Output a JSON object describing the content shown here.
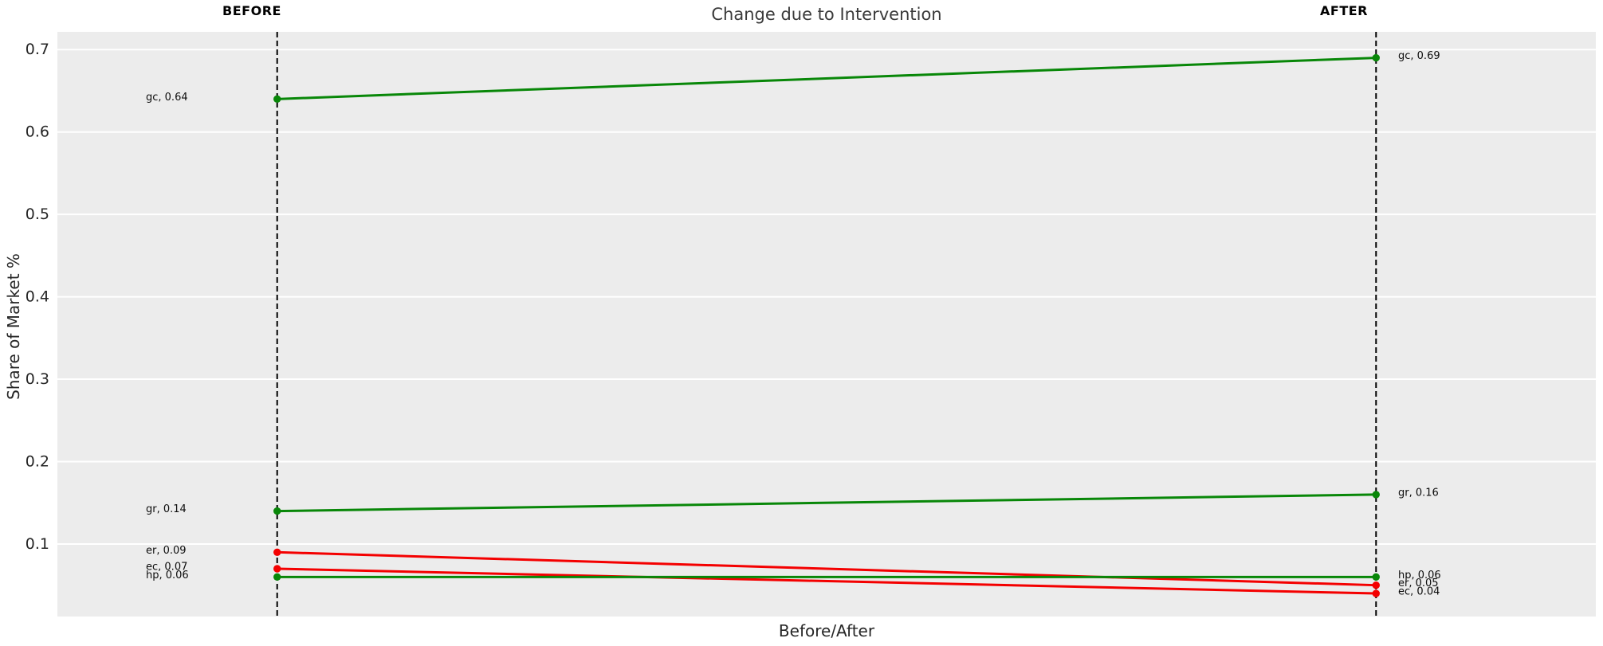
{
  "title": "Change due to Intervention",
  "axes": {
    "ylabel": "Share of Market %",
    "xlabel": "Before/After"
  },
  "columns": {
    "before": "BEFORE",
    "after": "AFTER"
  },
  "chart_data": {
    "type": "line",
    "subtype": "slopegraph",
    "title": "Change due to Intervention",
    "xlabel": "Before/After",
    "ylabel": "Share of Market %",
    "categories": [
      "BEFORE",
      "AFTER"
    ],
    "x": [
      1,
      2
    ],
    "xlim": [
      0.8,
      2.2
    ],
    "ylim": [
      0.012,
      0.7215
    ],
    "yticks": [
      0.1,
      0.2,
      0.3,
      0.4,
      0.5,
      0.6,
      0.7
    ],
    "grid": true,
    "legend": "none",
    "plot_bg_color": "#ececec",
    "grid_color": "#ffffff",
    "column_line_color": "#000000",
    "tick_label_color": "#262626",
    "point_label_color": "#0d0d0d",
    "increase_color": "#088708",
    "decrease_color": "#f40000",
    "series": [
      {
        "name": "gc",
        "trend": "increase",
        "color": "#088708",
        "values": [
          0.64,
          0.69
        ],
        "label_before": "gc, 0.64",
        "label_after": "gc, 0.69"
      },
      {
        "name": "gr",
        "trend": "increase",
        "color": "#088708",
        "values": [
          0.14,
          0.16
        ],
        "label_before": "gr, 0.14",
        "label_after": "gr, 0.16"
      },
      {
        "name": "er",
        "trend": "decrease",
        "color": "#f40000",
        "values": [
          0.09,
          0.05
        ],
        "label_before": "er, 0.09",
        "label_after": "er, 0.05"
      },
      {
        "name": "ec",
        "trend": "decrease",
        "color": "#f40000",
        "values": [
          0.07,
          0.04
        ],
        "label_before": "ec, 0.07",
        "label_after": "ec, 0.04"
      },
      {
        "name": "hp",
        "trend": "flat",
        "color": "#088708",
        "values": [
          0.06,
          0.06
        ],
        "label_before": "hp, 0.06",
        "label_after": "hp, 0.06"
      }
    ]
  }
}
